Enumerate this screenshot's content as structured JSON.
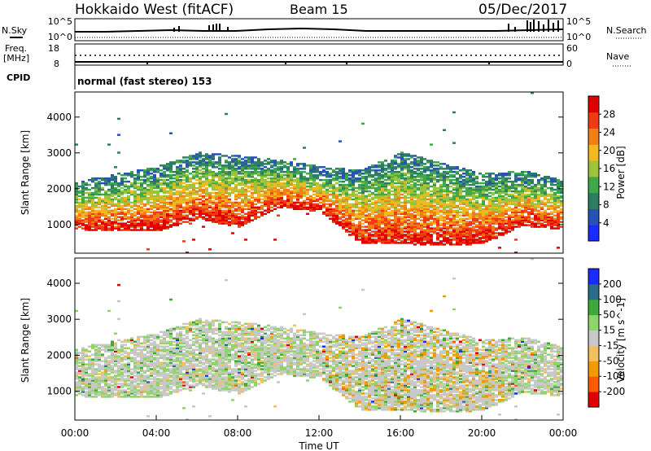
{
  "header": {
    "station": "Hokkaido West (fitACF)",
    "beam": "Beam 15",
    "date": "05/Dec/2017"
  },
  "top_panels": {
    "nsky_label": "N.Sky",
    "nsky_ticks": [
      "10^5",
      "10^0"
    ],
    "nsearch_label": "N.Search",
    "nsearch_ticks": [
      "10^5",
      "10^0"
    ],
    "freq_label_1": "Freq.",
    "freq_label_2": "[MHz]",
    "freq_ticks": [
      "18",
      "8"
    ],
    "nave_label": "Nave",
    "nave_ticks": [
      "60",
      "0"
    ],
    "cpid_label": "CPID",
    "cpid_text": "normal (fast stereo) 153"
  },
  "colors": {
    "power_scale": [
      "#1a2bff",
      "#2851b8",
      "#2e7d62",
      "#3fa84a",
      "#9cc43b",
      "#f2b820",
      "#f07f18",
      "#ef3a12",
      "#e00000"
    ],
    "velocity_scale": [
      "#e00000",
      "#ff5a00",
      "#f29a00",
      "#f2c060",
      "#c8c8c8",
      "#8fd46a",
      "#3ea83a",
      "#2a6b8a",
      "#1a2bff"
    ]
  },
  "chart_data": [
    {
      "type": "heatmap",
      "title": "",
      "xlabel": "",
      "ylabel": "Slant Range [km]",
      "x_ticks": [
        "00:00",
        "04:00",
        "08:00",
        "12:00",
        "16:00",
        "20:00",
        "00:00"
      ],
      "x_hours": [
        0,
        4,
        8,
        12,
        16,
        20,
        24
      ],
      "y_ticks": [
        1000,
        2000,
        3000,
        4000
      ],
      "ylim": [
        200,
        4700
      ],
      "colorbar_label": "Power [dB]",
      "colorbar_ticks": [
        "4",
        "8",
        "12",
        "16",
        "20",
        "24",
        "28"
      ],
      "colorbar_range": [
        0,
        30
      ],
      "range_profile_km": [
        {
          "hour": 0,
          "low_edge": 900,
          "high_edge": 2000
        },
        {
          "hour": 2,
          "low_edge": 850,
          "high_edge": 2200
        },
        {
          "hour": 4,
          "low_edge": 850,
          "high_edge": 2400
        },
        {
          "hour": 6,
          "low_edge": 1200,
          "high_edge": 2800
        },
        {
          "hour": 8,
          "low_edge": 950,
          "high_edge": 2700
        },
        {
          "hour": 10,
          "low_edge": 1500,
          "high_edge": 2600
        },
        {
          "hour": 12,
          "low_edge": 1400,
          "high_edge": 2400
        },
        {
          "hour": 14,
          "low_edge": 500,
          "high_edge": 2300
        },
        {
          "hour": 16,
          "low_edge": 500,
          "high_edge": 2800
        },
        {
          "hour": 18,
          "low_edge": 450,
          "high_edge": 2500
        },
        {
          "hour": 20,
          "low_edge": 500,
          "high_edge": 2200
        },
        {
          "hour": 22,
          "low_edge": 1000,
          "high_edge": 2300
        },
        {
          "hour": 24,
          "low_edge": 900,
          "high_edge": 2000
        }
      ]
    },
    {
      "type": "heatmap",
      "title": "",
      "xlabel": "Time UT",
      "ylabel": "Slant Range [km]",
      "x_ticks": [
        "00:00",
        "04:00",
        "08:00",
        "12:00",
        "16:00",
        "20:00",
        "00:00"
      ],
      "x_hours": [
        0,
        4,
        8,
        12,
        16,
        20,
        24
      ],
      "y_ticks": [
        1000,
        2000,
        3000,
        4000
      ],
      "ylim": [
        200,
        4700
      ],
      "colorbar_label": "Velocity [m s^-1]",
      "colorbar_ticks": [
        "-200",
        "-100",
        "-50",
        "-15",
        "15",
        "50",
        "100",
        "200"
      ],
      "colorbar_range": [
        -250,
        250
      ]
    }
  ]
}
